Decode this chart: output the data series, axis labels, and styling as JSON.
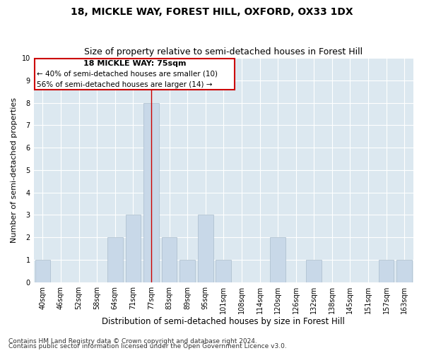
{
  "title": "18, MICKLE WAY, FOREST HILL, OXFORD, OX33 1DX",
  "subtitle": "Size of property relative to semi-detached houses in Forest Hill",
  "xlabel": "Distribution of semi-detached houses by size in Forest Hill",
  "ylabel": "Number of semi-detached properties",
  "categories": [
    "40sqm",
    "46sqm",
    "52sqm",
    "58sqm",
    "64sqm",
    "71sqm",
    "77sqm",
    "83sqm",
    "89sqm",
    "95sqm",
    "101sqm",
    "108sqm",
    "114sqm",
    "120sqm",
    "126sqm",
    "132sqm",
    "138sqm",
    "145sqm",
    "151sqm",
    "157sqm",
    "163sqm"
  ],
  "values": [
    1,
    0,
    0,
    0,
    2,
    3,
    8,
    2,
    1,
    3,
    1,
    0,
    0,
    2,
    0,
    1,
    0,
    0,
    0,
    1,
    1
  ],
  "bar_color": "#c8d8e8",
  "bar_edgecolor": "#aabccc",
  "vline_color": "#cc0000",
  "vline_x": 6,
  "annotation_title": "18 MICKLE WAY: 75sqm",
  "annotation_line1": "← 40% of semi-detached houses are smaller (10)",
  "annotation_line2": "56% of semi-detached houses are larger (14) →",
  "annotation_box_color": "#cc0000",
  "ylim": [
    0,
    10
  ],
  "yticks": [
    0,
    1,
    2,
    3,
    4,
    5,
    6,
    7,
    8,
    9,
    10
  ],
  "footer1": "Contains HM Land Registry data © Crown copyright and database right 2024.",
  "footer2": "Contains public sector information licensed under the Open Government Licence v3.0.",
  "bg_color": "#dce8f0",
  "grid_color": "#ffffff",
  "title_fontsize": 10,
  "subtitle_fontsize": 9,
  "xlabel_fontsize": 8.5,
  "ylabel_fontsize": 8,
  "tick_fontsize": 7,
  "annotation_title_fontsize": 8,
  "annotation_text_fontsize": 7.5,
  "footer_fontsize": 6.5
}
